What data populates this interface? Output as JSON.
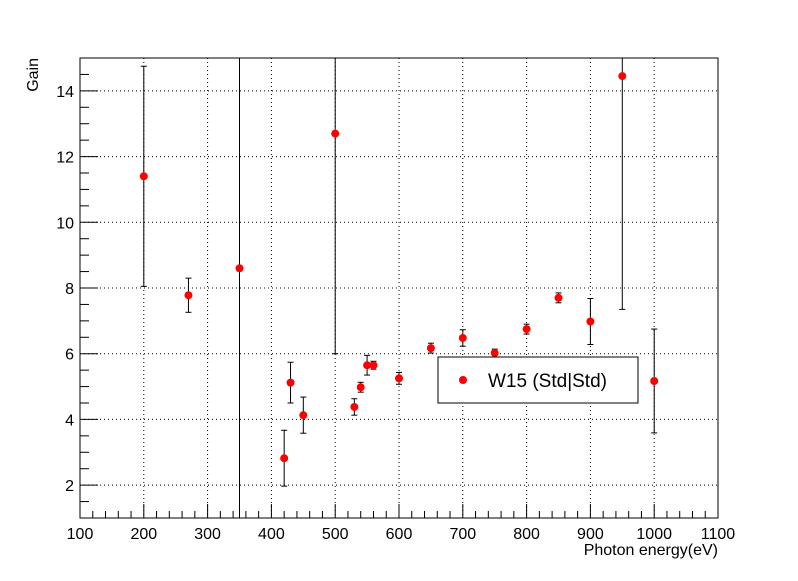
{
  "chart_data": {
    "type": "scatter",
    "title": "",
    "xlabel": "Photon energy(eV)",
    "ylabel": "Gain",
    "xlim": [
      100,
      1100
    ],
    "ylim": [
      1,
      15
    ],
    "x_ticks": [
      100,
      200,
      300,
      400,
      500,
      600,
      700,
      800,
      900,
      1000,
      1100
    ],
    "y_ticks": [
      2,
      4,
      6,
      8,
      10,
      12,
      14
    ],
    "grid": true,
    "legend_position": "center-right",
    "colors": {
      "marker": "#ff0000",
      "error_bar": "#000000",
      "grid": "#000000"
    },
    "series": [
      {
        "name": "W15 (Std|Std)",
        "marker": "circle",
        "points": [
          {
            "x": 200,
            "y": 11.4,
            "err": 3.35
          },
          {
            "x": 270,
            "y": 7.78,
            "err": 0.52
          },
          {
            "x": 350,
            "y": 8.6,
            "err": 9.6
          },
          {
            "x": 420,
            "y": 2.82,
            "err": 0.85
          },
          {
            "x": 430,
            "y": 5.12,
            "err": 0.62
          },
          {
            "x": 450,
            "y": 4.13,
            "err": 0.55
          },
          {
            "x": 500,
            "y": 12.7,
            "err": 6.7
          },
          {
            "x": 530,
            "y": 4.38,
            "err": 0.25
          },
          {
            "x": 540,
            "y": 4.98,
            "err": 0.15
          },
          {
            "x": 550,
            "y": 5.65,
            "err": 0.3
          },
          {
            "x": 560,
            "y": 5.65,
            "err": 0.12
          },
          {
            "x": 600,
            "y": 5.25,
            "err": 0.18
          },
          {
            "x": 650,
            "y": 6.17,
            "err": 0.15
          },
          {
            "x": 700,
            "y": 6.48,
            "err": 0.25
          },
          {
            "x": 750,
            "y": 6.02,
            "err": 0.12
          },
          {
            "x": 800,
            "y": 6.75,
            "err": 0.15
          },
          {
            "x": 850,
            "y": 7.7,
            "err": 0.15
          },
          {
            "x": 900,
            "y": 6.98,
            "err": 0.7
          },
          {
            "x": 950,
            "y": 14.45,
            "err": 7.1
          },
          {
            "x": 1000,
            "y": 5.17,
            "err": 1.58
          }
        ]
      }
    ]
  }
}
